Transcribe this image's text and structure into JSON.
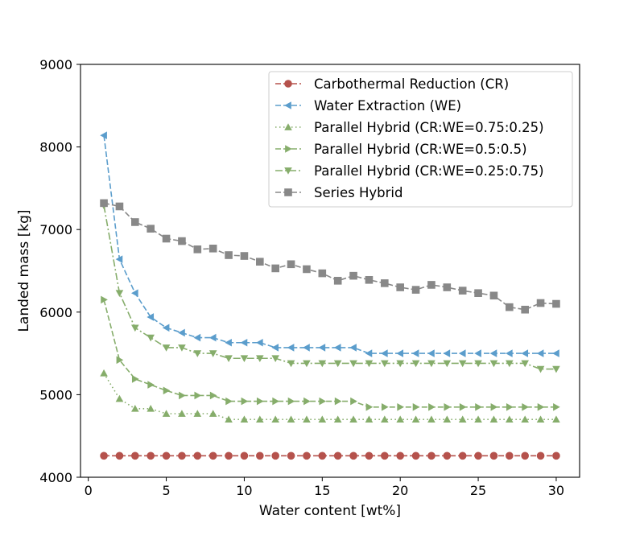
{
  "chart_data": {
    "type": "line",
    "title": "",
    "xlabel": "Water content [wt%]",
    "ylabel": "Landed mass [kg]",
    "xlim": [
      -0.5,
      31.5
    ],
    "ylim": [
      4000,
      9000
    ],
    "xticks": [
      0,
      5,
      10,
      15,
      20,
      25,
      30
    ],
    "yticks": [
      4000,
      5000,
      6000,
      7000,
      8000,
      9000
    ],
    "grid": false,
    "legend_position": "top-right",
    "x": [
      1,
      2,
      3,
      4,
      5,
      6,
      7,
      8,
      9,
      10,
      11,
      12,
      13,
      14,
      15,
      16,
      17,
      18,
      19,
      20,
      21,
      22,
      23,
      24,
      25,
      26,
      27,
      28,
      29,
      30
    ],
    "series": [
      {
        "name": "Carbothermal Reduction (CR)",
        "color": "#b5524c",
        "marker": "circle",
        "linestyle": "dashed",
        "values": [
          4260,
          4260,
          4260,
          4260,
          4260,
          4260,
          4260,
          4260,
          4260,
          4260,
          4260,
          4260,
          4260,
          4260,
          4260,
          4260,
          4260,
          4260,
          4260,
          4260,
          4260,
          4260,
          4260,
          4260,
          4260,
          4260,
          4260,
          4260,
          4260,
          4260
        ]
      },
      {
        "name": "Water Extraction (WE)",
        "color": "#5b9dcc",
        "marker": "triangle-left",
        "linestyle": "dashed",
        "values": [
          8140,
          6640,
          6230,
          5940,
          5810,
          5750,
          5690,
          5690,
          5630,
          5630,
          5630,
          5570,
          5570,
          5570,
          5570,
          5570,
          5570,
          5500,
          5500,
          5500,
          5500,
          5500,
          5500,
          5500,
          5500,
          5500,
          5500,
          5500,
          5500,
          5500
        ]
      },
      {
        "name": "Parallel Hybrid (CR:WE=0.75:0.25)",
        "color": "#86ad6b",
        "marker": "triangle-up",
        "linestyle": "dotted",
        "values": [
          5260,
          4950,
          4830,
          4830,
          4770,
          4770,
          4770,
          4770,
          4700,
          4700,
          4700,
          4700,
          4700,
          4700,
          4700,
          4700,
          4700,
          4700,
          4700,
          4700,
          4700,
          4700,
          4700,
          4700,
          4700,
          4700,
          4700,
          4700,
          4700,
          4700
        ]
      },
      {
        "name": "Parallel Hybrid (CR:WE=0.5:0.5)",
        "color": "#86ad6b",
        "marker": "triangle-right",
        "linestyle": "dashed",
        "values": [
          6150,
          5420,
          5190,
          5120,
          5050,
          4990,
          4990,
          4990,
          4920,
          4920,
          4920,
          4920,
          4920,
          4920,
          4920,
          4920,
          4920,
          4850,
          4850,
          4850,
          4850,
          4850,
          4850,
          4850,
          4850,
          4850,
          4850,
          4850,
          4850,
          4850
        ]
      },
      {
        "name": "Parallel Hybrid (CR:WE=0.25:0.75)",
        "color": "#86ad6b",
        "marker": "triangle-down",
        "linestyle": "dashdot",
        "values": [
          7290,
          6230,
          5810,
          5690,
          5570,
          5570,
          5500,
          5500,
          5440,
          5440,
          5440,
          5440,
          5380,
          5380,
          5380,
          5380,
          5380,
          5380,
          5380,
          5380,
          5380,
          5380,
          5380,
          5380,
          5380,
          5380,
          5380,
          5380,
          5310,
          5310
        ]
      },
      {
        "name": "Series Hybrid",
        "color": "#888888",
        "marker": "square",
        "linestyle": "dashed",
        "values": [
          7320,
          7280,
          7090,
          7010,
          6890,
          6860,
          6760,
          6770,
          6690,
          6680,
          6610,
          6530,
          6580,
          6520,
          6470,
          6380,
          6440,
          6390,
          6350,
          6300,
          6270,
          6330,
          6300,
          6260,
          6230,
          6200,
          6060,
          6030,
          6110,
          6100
        ]
      }
    ]
  }
}
